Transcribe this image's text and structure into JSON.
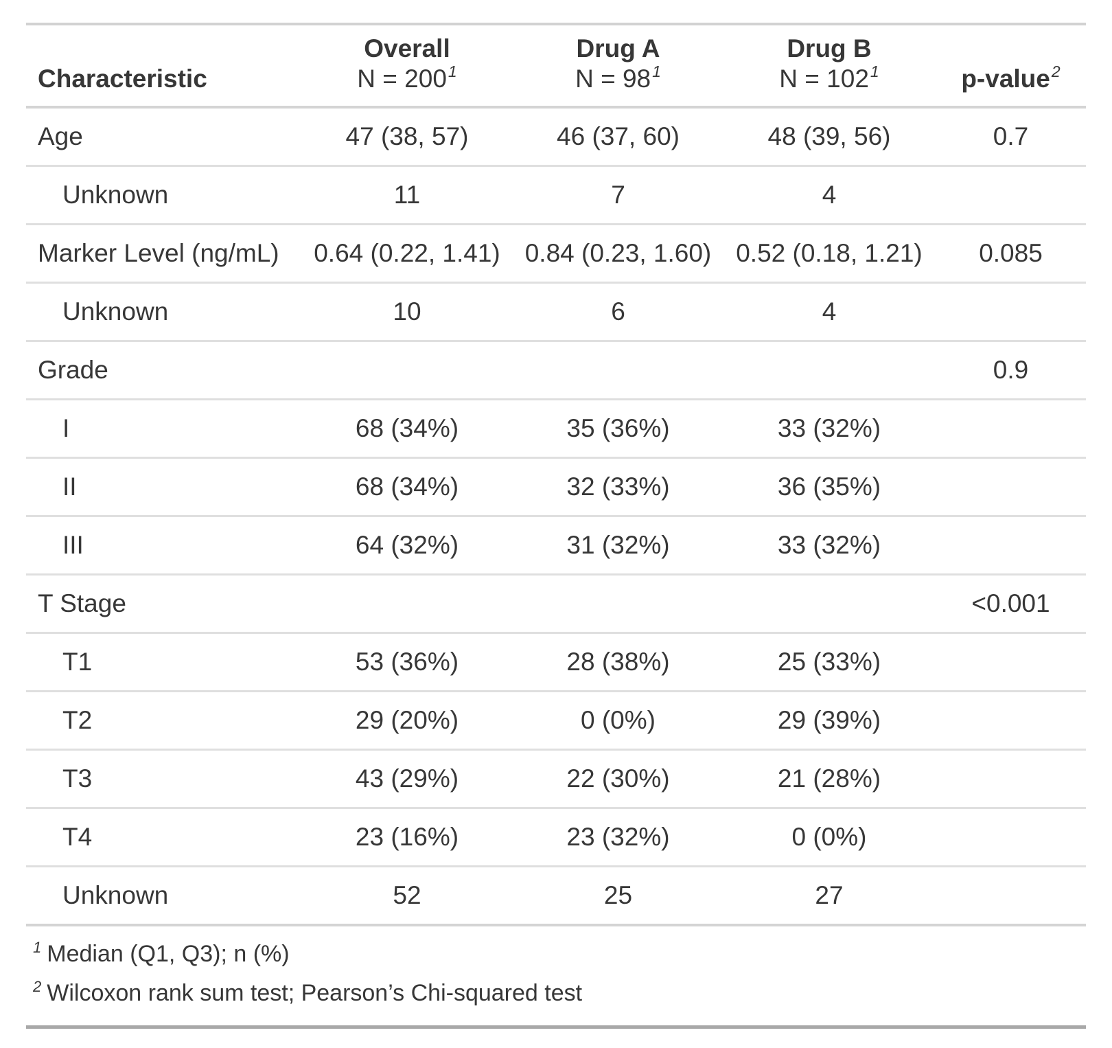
{
  "chart_data": {
    "type": "table",
    "columns": [
      {
        "key": "label",
        "header": "Characteristic"
      },
      {
        "key": "overall",
        "header": "Overall",
        "subheader": "N = 200",
        "footnote_mark": "1"
      },
      {
        "key": "drug_a",
        "header": "Drug A",
        "subheader": "N = 98",
        "footnote_mark": "1"
      },
      {
        "key": "drug_b",
        "header": "Drug B",
        "subheader": "N = 102",
        "footnote_mark": "1"
      },
      {
        "key": "p_value",
        "header": "p-value",
        "footnote_mark": "2"
      }
    ],
    "rows": [
      {
        "label": "Age",
        "indent": false,
        "overall": "47 (38, 57)",
        "drug_a": "46 (37, 60)",
        "drug_b": "48 (39, 56)",
        "p_value": "0.7"
      },
      {
        "label": "Unknown",
        "indent": true,
        "overall": "11",
        "drug_a": "7",
        "drug_b": "4",
        "p_value": ""
      },
      {
        "label": "Marker Level (ng/mL)",
        "indent": false,
        "overall": "0.64 (0.22, 1.41)",
        "drug_a": "0.84 (0.23, 1.60)",
        "drug_b": "0.52 (0.18, 1.21)",
        "p_value": "0.085"
      },
      {
        "label": "Unknown",
        "indent": true,
        "overall": "10",
        "drug_a": "6",
        "drug_b": "4",
        "p_value": ""
      },
      {
        "label": "Grade",
        "indent": false,
        "overall": "",
        "drug_a": "",
        "drug_b": "",
        "p_value": "0.9"
      },
      {
        "label": "I",
        "indent": true,
        "overall": "68 (34%)",
        "drug_a": "35 (36%)",
        "drug_b": "33 (32%)",
        "p_value": ""
      },
      {
        "label": "II",
        "indent": true,
        "overall": "68 (34%)",
        "drug_a": "32 (33%)",
        "drug_b": "36 (35%)",
        "p_value": ""
      },
      {
        "label": "III",
        "indent": true,
        "overall": "64 (32%)",
        "drug_a": "31 (32%)",
        "drug_b": "33 (32%)",
        "p_value": ""
      },
      {
        "label": "T Stage",
        "indent": false,
        "overall": "",
        "drug_a": "",
        "drug_b": "",
        "p_value": "<0.001"
      },
      {
        "label": "T1",
        "indent": true,
        "overall": "53 (36%)",
        "drug_a": "28 (38%)",
        "drug_b": "25 (33%)",
        "p_value": ""
      },
      {
        "label": "T2",
        "indent": true,
        "overall": "29 (20%)",
        "drug_a": "0 (0%)",
        "drug_b": "29 (39%)",
        "p_value": ""
      },
      {
        "label": "T3",
        "indent": true,
        "overall": "43 (29%)",
        "drug_a": "22 (30%)",
        "drug_b": "21 (28%)",
        "p_value": ""
      },
      {
        "label": "T4",
        "indent": true,
        "overall": "23 (16%)",
        "drug_a": "23 (32%)",
        "drug_b": "0 (0%)",
        "p_value": ""
      },
      {
        "label": "Unknown",
        "indent": true,
        "overall": "52",
        "drug_a": "25",
        "drug_b": "27",
        "p_value": ""
      }
    ],
    "footnotes": [
      {
        "mark": "1",
        "text": "Median (Q1, Q3); n (%)"
      },
      {
        "mark": "2",
        "text": "Wilcoxon rank sum test; Pearson’s Chi-squared test"
      }
    ],
    "layout_hints": {
      "value_columns_align": "center",
      "label_column_align": "left",
      "grid": "horizontal-rules-only"
    }
  },
  "colors": {
    "text": "#373737",
    "row_divider": "#dfdfdf",
    "header_rule": "#d4d4d4",
    "table_top_rule": "#d2d2d2",
    "table_bottom_rule": "#a8a8a8",
    "background": "#ffffff"
  }
}
